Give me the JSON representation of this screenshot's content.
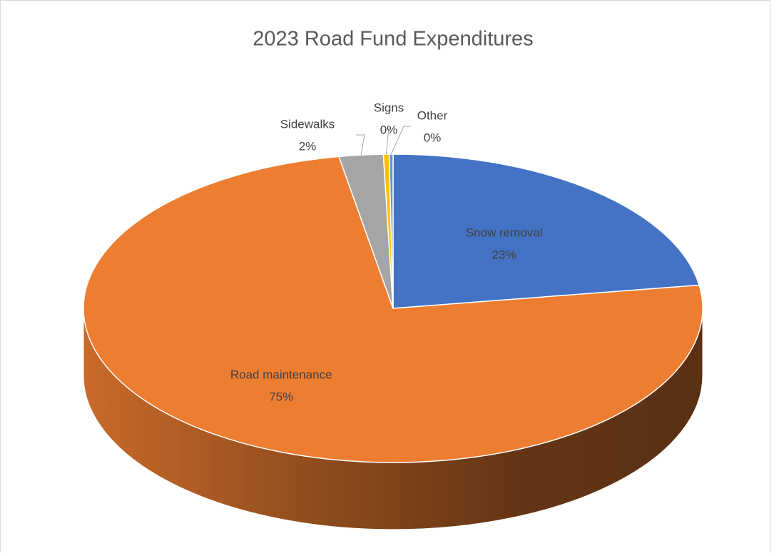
{
  "chart_data": {
    "type": "pie3d",
    "title": "2023 Road Fund Expenditures",
    "categories": [
      "Snow removal",
      "Road maintenance",
      "Sidewalks",
      "Signs",
      "Other"
    ],
    "values": [
      22.6,
      74.6,
      2.3,
      0.3,
      0.2
    ],
    "value_labels": [
      "23%",
      "75%",
      "2%",
      "0%",
      "0%"
    ],
    "colors": [
      "#4472c4",
      "#ed7d31",
      "#a5a5a5",
      "#ffc000",
      "#5b9bd5"
    ]
  }
}
